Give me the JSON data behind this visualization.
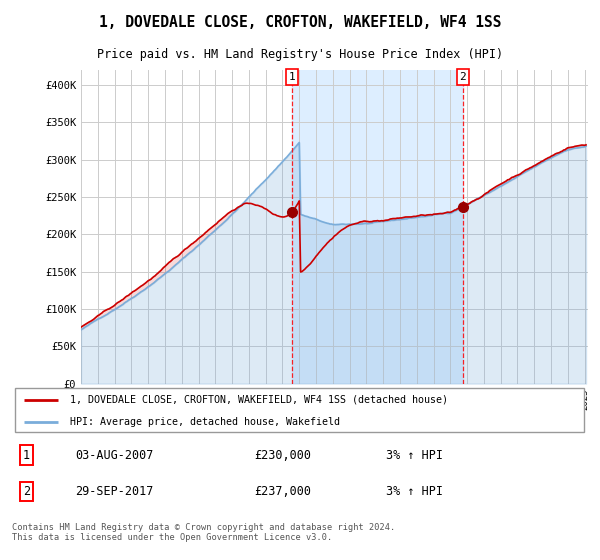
{
  "title": "1, DOVEDALE CLOSE, CROFTON, WAKEFIELD, WF4 1SS",
  "subtitle": "Price paid vs. HM Land Registry's House Price Index (HPI)",
  "ylim": [
    0,
    400000
  ],
  "background_color": "#ffffff",
  "plot_bg_color": "#ffffff",
  "grid_color": "#cccccc",
  "hpi_color": "#7aadda",
  "price_color": "#cc0000",
  "highlight_color": "#ddeeff",
  "sale1_x": 2007.58,
  "sale1_price": 230000,
  "sale2_x": 2017.75,
  "sale2_price": 237000,
  "legend_line1": "1, DOVEDALE CLOSE, CROFTON, WAKEFIELD, WF4 1SS (detached house)",
  "legend_line2": "HPI: Average price, detached house, Wakefield",
  "annotation1_label": "1",
  "annotation1_date": "03-AUG-2007",
  "annotation1_price": "£230,000",
  "annotation1_hpi": "3% ↑ HPI",
  "annotation2_label": "2",
  "annotation2_date": "29-SEP-2017",
  "annotation2_price": "£237,000",
  "annotation2_hpi": "3% ↑ HPI",
  "footer": "Contains HM Land Registry data © Crown copyright and database right 2024.\nThis data is licensed under the Open Government Licence v3.0."
}
